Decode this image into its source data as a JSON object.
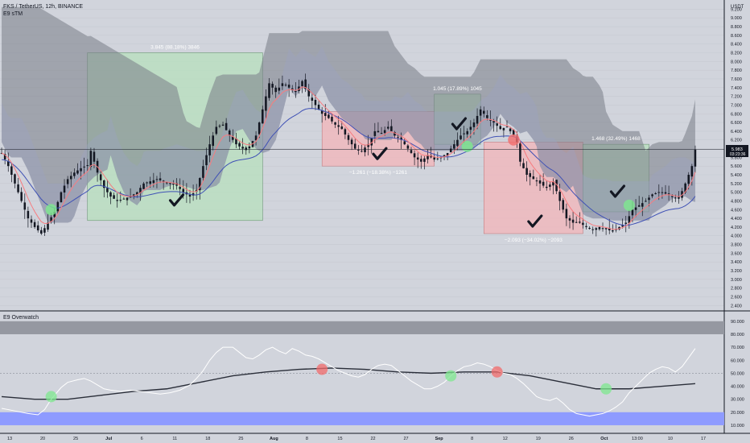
{
  "header": {
    "title": "FKS / TetherUS, 12h, BINANCE",
    "indicator": "E9 sTM",
    "currency": "USDT"
  },
  "oscillator": {
    "title": "E9 Overwatch"
  },
  "price_badge": {
    "price": "5.983",
    "countdown": "03:23:36"
  },
  "colors": {
    "background": "#d1d4dc",
    "up_candle": "#131722",
    "down_candle": "#131722",
    "cloud": "#787b86",
    "green_zone": "#b7e0be",
    "red_zone": "#f3b6ba",
    "overbought_band": "#9598a1",
    "oversold_band": "#8e9bff",
    "signal_green": "#7de88f",
    "signal_red": "#f26b6b"
  },
  "chart_data": [
    {
      "type": "candlestick",
      "x_ticks": [
        "13",
        "20",
        "25",
        "Jul",
        "6",
        "11",
        "18",
        "25",
        "Aug",
        "8",
        "15",
        "22",
        "27",
        "Sep",
        "8",
        "12",
        "19",
        "26",
        "Oct",
        "13:00",
        "10",
        "17"
      ],
      "y_ticks": [
        "2.400",
        "2.600",
        "2.800",
        "3.000",
        "3.200",
        "3.400",
        "3.600",
        "3.800",
        "4.000",
        "4.200",
        "4.400",
        "4.600",
        "4.800",
        "5.000",
        "5.200",
        "5.400",
        "5.600",
        "5.800",
        "6.000",
        "6.200",
        "6.400",
        "6.600",
        "6.800",
        "7.000",
        "7.200",
        "7.400",
        "7.600",
        "7.800",
        "8.000",
        "8.200",
        "8.400",
        "8.600",
        "8.800",
        "9.000",
        "9.200"
      ],
      "ylim": [
        2.35,
        9.3
      ],
      "close_path": [
        [
          0,
          5.9
        ],
        [
          2,
          5.6
        ],
        [
          4,
          5.2
        ],
        [
          6,
          4.8
        ],
        [
          8,
          4.4
        ],
        [
          10,
          4.2
        ],
        [
          12,
          4.05
        ],
        [
          14,
          4.3
        ],
        [
          16,
          4.55
        ],
        [
          18,
          5.0
        ],
        [
          20,
          5.3
        ],
        [
          22,
          5.45
        ],
        [
          24,
          5.55
        ],
        [
          26,
          5.62
        ],
        [
          27,
          5.95
        ],
        [
          29,
          5.45
        ],
        [
          31,
          5.1
        ],
        [
          33,
          4.9
        ],
        [
          35,
          4.8
        ],
        [
          37,
          4.85
        ],
        [
          39,
          4.9
        ],
        [
          41,
          5.0
        ],
        [
          43,
          5.2
        ],
        [
          45,
          5.25
        ],
        [
          47,
          5.3
        ],
        [
          49,
          5.25
        ],
        [
          51,
          5.2
        ],
        [
          53,
          5.15
        ],
        [
          55,
          5.0
        ],
        [
          57,
          4.9
        ],
        [
          59,
          5.05
        ],
        [
          61,
          5.6
        ],
        [
          63,
          6.1
        ],
        [
          65,
          6.5
        ],
        [
          67,
          6.55
        ],
        [
          69,
          6.3
        ],
        [
          71,
          6.1
        ],
        [
          73,
          6.0
        ],
        [
          75,
          6.05
        ],
        [
          77,
          6.3
        ],
        [
          79,
          6.9
        ],
        [
          81,
          7.5
        ],
        [
          83,
          7.3
        ],
        [
          85,
          7.5
        ],
        [
          87,
          7.4
        ],
        [
          89,
          7.3
        ],
        [
          91,
          7.55
        ],
        [
          93,
          7.2
        ],
        [
          95,
          7.0
        ],
        [
          97,
          6.8
        ],
        [
          99,
          6.7
        ],
        [
          101,
          6.55
        ],
        [
          103,
          6.45
        ],
        [
          105,
          6.2
        ],
        [
          107,
          6.0
        ],
        [
          109,
          5.95
        ],
        [
          111,
          6.1
        ],
        [
          113,
          6.4
        ],
        [
          115,
          6.35
        ],
        [
          117,
          6.5
        ],
        [
          119,
          6.3
        ],
        [
          121,
          6.2
        ],
        [
          123,
          6.0
        ],
        [
          125,
          5.8
        ],
        [
          127,
          5.7
        ],
        [
          129,
          5.85
        ],
        [
          131,
          5.75
        ],
        [
          133,
          5.8
        ],
        [
          135,
          5.9
        ],
        [
          137,
          6.1
        ],
        [
          139,
          6.3
        ],
        [
          141,
          6.4
        ],
        [
          143,
          6.6
        ],
        [
          145,
          6.9
        ],
        [
          147,
          6.7
        ],
        [
          149,
          6.6
        ],
        [
          151,
          6.45
        ],
        [
          153,
          6.5
        ],
        [
          155,
          6.3
        ],
        [
          156,
          6.15
        ],
        [
          157,
          5.7
        ],
        [
          159,
          5.4
        ],
        [
          161,
          5.3
        ],
        [
          163,
          5.2
        ],
        [
          165,
          5.1
        ],
        [
          167,
          5.25
        ],
        [
          169,
          4.8
        ],
        [
          171,
          4.4
        ],
        [
          173,
          4.3
        ],
        [
          175,
          4.3
        ],
        [
          177,
          4.2
        ],
        [
          179,
          4.15
        ],
        [
          181,
          4.2
        ],
        [
          183,
          4.15
        ],
        [
          185,
          4.1
        ],
        [
          187,
          4.2
        ],
        [
          189,
          4.3
        ],
        [
          191,
          4.6
        ],
        [
          193,
          4.7
        ],
        [
          195,
          4.8
        ],
        [
          197,
          4.95
        ],
        [
          199,
          5.0
        ],
        [
          201,
          5.0
        ],
        [
          203,
          4.9
        ],
        [
          205,
          4.85
        ],
        [
          207,
          5.2
        ],
        [
          209,
          5.6
        ],
        [
          210,
          5.98
        ]
      ],
      "ranges": [
        {
          "label": "3.845 (88.18%) 3846",
          "trend": "up"
        },
        {
          "label": "−1.261 (−18.38%) −1261",
          "trend": "down"
        },
        {
          "label": "1.045 (17.89%) 1045",
          "trend": "up"
        },
        {
          "label": "−2.093 (−34.02%) −2093",
          "trend": "down"
        },
        {
          "label": "1.468 (32.49%) 1468",
          "trend": "up"
        }
      ]
    },
    {
      "type": "line",
      "title": "E9 Overwatch",
      "y_ticks": [
        "10.000",
        "20.000",
        "30.000",
        "40.000",
        "50.000",
        "60.000",
        "70.000",
        "80.000",
        "90.000"
      ],
      "ylim": [
        5,
        93
      ],
      "overbought_band": [
        80,
        90
      ],
      "oversold_band": [
        10,
        20
      ],
      "midline": 50,
      "series": [
        {
          "values": [
            [
              0,
              23
            ],
            [
              4,
              21
            ],
            [
              8,
              19
            ],
            [
              11,
              18
            ],
            [
              13,
              22
            ],
            [
              15,
              30
            ],
            [
              18,
              39
            ],
            [
              20,
              43
            ],
            [
              23,
              45
            ],
            [
              25,
              46
            ],
            [
              27,
              44
            ],
            [
              29,
              41
            ],
            [
              31,
              38
            ],
            [
              33,
              37
            ],
            [
              36,
              36
            ],
            [
              39,
              37
            ],
            [
              42,
              36
            ],
            [
              45,
              35
            ],
            [
              48,
              34
            ],
            [
              51,
              35
            ],
            [
              54,
              37
            ],
            [
              57,
              41
            ],
            [
              59,
              46
            ],
            [
              61,
              52
            ],
            [
              63,
              60
            ],
            [
              65,
              66
            ],
            [
              67,
              70
            ],
            [
              70,
              70
            ],
            [
              72,
              66
            ],
            [
              74,
              62
            ],
            [
              76,
              61
            ],
            [
              78,
              64
            ],
            [
              80,
              68
            ],
            [
              82,
              70
            ],
            [
              84,
              67
            ],
            [
              86,
              65
            ],
            [
              88,
              69
            ],
            [
              90,
              67
            ],
            [
              92,
              64
            ],
            [
              94,
              63
            ],
            [
              96,
              61
            ],
            [
              98,
              58
            ],
            [
              100,
              55
            ],
            [
              102,
              52
            ],
            [
              104,
              50
            ],
            [
              106,
              48
            ],
            [
              108,
              47
            ],
            [
              110,
              49
            ],
            [
              112,
              53
            ],
            [
              114,
              56
            ],
            [
              116,
              57
            ],
            [
              118,
              56
            ],
            [
              120,
              52
            ],
            [
              122,
              48
            ],
            [
              124,
              44
            ],
            [
              126,
              41
            ],
            [
              128,
              38
            ],
            [
              130,
              38
            ],
            [
              132,
              40
            ],
            [
              134,
              43
            ],
            [
              136,
              48
            ],
            [
              138,
              52
            ],
            [
              140,
              55
            ],
            [
              142,
              56
            ],
            [
              144,
              58
            ],
            [
              146,
              57
            ],
            [
              148,
              55
            ],
            [
              150,
              52
            ],
            [
              152,
              50
            ],
            [
              154,
              49
            ],
            [
              156,
              46
            ],
            [
              158,
              42
            ],
            [
              160,
              37
            ],
            [
              162,
              32
            ],
            [
              164,
              30
            ],
            [
              166,
              29
            ],
            [
              168,
              31
            ],
            [
              170,
              27
            ],
            [
              172,
              22
            ],
            [
              174,
              19
            ],
            [
              176,
              18
            ],
            [
              178,
              17
            ],
            [
              180,
              18
            ],
            [
              182,
              19
            ],
            [
              184,
              21
            ],
            [
              186,
              24
            ],
            [
              188,
              28
            ],
            [
              190,
              35
            ],
            [
              192,
              40
            ],
            [
              194,
              45
            ],
            [
              196,
              50
            ],
            [
              198,
              53
            ],
            [
              200,
              55
            ],
            [
              202,
              54
            ],
            [
              204,
              51
            ],
            [
              206,
              55
            ],
            [
              208,
              62
            ],
            [
              210,
              69
            ]
          ]
        },
        {
          "values": [
            [
              0,
              32
            ],
            [
              10,
              30
            ],
            [
              20,
              30
            ],
            [
              30,
              33
            ],
            [
              40,
              36
            ],
            [
              50,
              38
            ],
            [
              60,
              43
            ],
            [
              70,
              48
            ],
            [
              80,
              51
            ],
            [
              90,
              53
            ],
            [
              100,
              54
            ],
            [
              110,
              53
            ],
            [
              120,
              51
            ],
            [
              130,
              50
            ],
            [
              140,
              51
            ],
            [
              150,
              51
            ],
            [
              160,
              48
            ],
            [
              170,
              43
            ],
            [
              180,
              38
            ],
            [
              190,
              38
            ],
            [
              200,
              40
            ],
            [
              210,
              42
            ]
          ]
        }
      ]
    }
  ]
}
